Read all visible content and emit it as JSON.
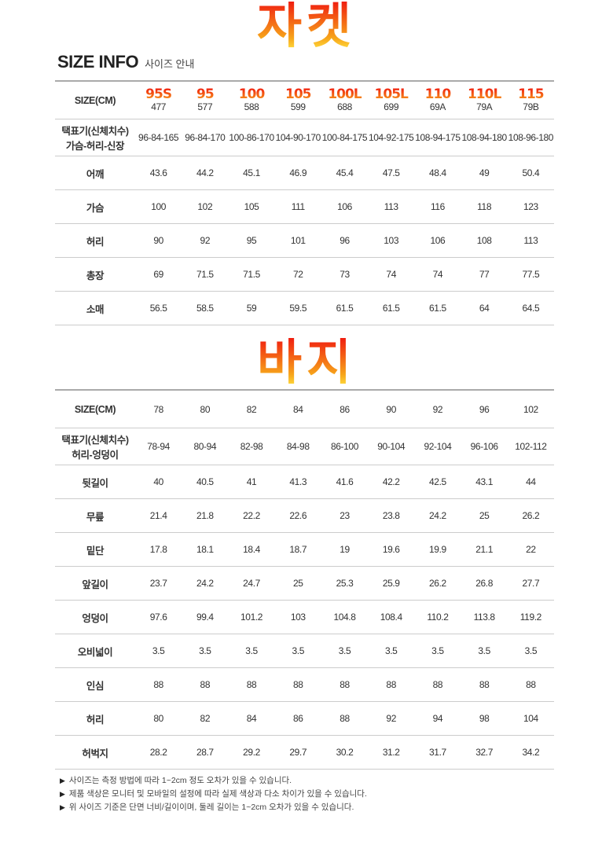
{
  "jacket": {
    "title": "자켓",
    "size_info": "SIZE INFO",
    "size_info_sub": "사이즈 안내",
    "size_label": "SIZE(CM)",
    "size_codes": [
      "95S",
      "95",
      "100",
      "105",
      "100L",
      "105L",
      "110",
      "110L",
      "115"
    ],
    "sizes": [
      "477",
      "577",
      "588",
      "599",
      "688",
      "699",
      "69A",
      "79A",
      "79B"
    ],
    "tag_label": [
      "택표기(신체치수)",
      "가슴-허리-신장"
    ],
    "tags": [
      "96-84-165",
      "96-84-170",
      "100-86-170",
      "104-90-170",
      "100-84-175",
      "104-92-175",
      "108-94-175",
      "108-94-180",
      "108-96-180"
    ],
    "rows": [
      {
        "label": "어깨",
        "values": [
          "43.6",
          "44.2",
          "45.1",
          "46.9",
          "45.4",
          "47.5",
          "48.4",
          "49",
          "50.4"
        ]
      },
      {
        "label": "가슴",
        "values": [
          "100",
          "102",
          "105",
          "111",
          "106",
          "113",
          "116",
          "118",
          "123"
        ]
      },
      {
        "label": "허리",
        "values": [
          "90",
          "92",
          "95",
          "101",
          "96",
          "103",
          "106",
          "108",
          "113"
        ]
      },
      {
        "label": "총장",
        "values": [
          "69",
          "71.5",
          "71.5",
          "72",
          "73",
          "74",
          "74",
          "77",
          "77.5"
        ]
      },
      {
        "label": "소매",
        "values": [
          "56.5",
          "58.5",
          "59",
          "59.5",
          "61.5",
          "61.5",
          "61.5",
          "64",
          "64.5"
        ]
      }
    ]
  },
  "pants": {
    "title": "바지",
    "size_label": "SIZE(CM)",
    "sizes": [
      "78",
      "80",
      "82",
      "84",
      "86",
      "90",
      "92",
      "96",
      "102"
    ],
    "tag_label": [
      "택표기(신체치수)",
      "허리-엉덩이"
    ],
    "tags": [
      "78-94",
      "80-94",
      "82-98",
      "84-98",
      "86-100",
      "90-104",
      "92-104",
      "96-106",
      "102-112"
    ],
    "rows": [
      {
        "label": "뒷길이",
        "values": [
          "40",
          "40.5",
          "41",
          "41.3",
          "41.6",
          "42.2",
          "42.5",
          "43.1",
          "44"
        ]
      },
      {
        "label": "무릎",
        "values": [
          "21.4",
          "21.8",
          "22.2",
          "22.6",
          "23",
          "23.8",
          "24.2",
          "25",
          "26.2"
        ]
      },
      {
        "label": "밑단",
        "values": [
          "17.8",
          "18.1",
          "18.4",
          "18.7",
          "19",
          "19.6",
          "19.9",
          "21.1",
          "22"
        ]
      },
      {
        "label": "앞길이",
        "values": [
          "23.7",
          "24.2",
          "24.7",
          "25",
          "25.3",
          "25.9",
          "26.2",
          "26.8",
          "27.7"
        ]
      },
      {
        "label": "엉덩이",
        "values": [
          "97.6",
          "99.4",
          "101.2",
          "103",
          "104.8",
          "108.4",
          "110.2",
          "113.8",
          "119.2"
        ]
      },
      {
        "label": "오비넓이",
        "values": [
          "3.5",
          "3.5",
          "3.5",
          "3.5",
          "3.5",
          "3.5",
          "3.5",
          "3.5",
          "3.5"
        ]
      },
      {
        "label": "인심",
        "values": [
          "88",
          "88",
          "88",
          "88",
          "88",
          "88",
          "88",
          "88",
          "88"
        ]
      },
      {
        "label": "허리",
        "values": [
          "80",
          "82",
          "84",
          "86",
          "88",
          "92",
          "94",
          "98",
          "104"
        ]
      },
      {
        "label": "허벅지",
        "values": [
          "28.2",
          "28.7",
          "29.2",
          "29.7",
          "30.2",
          "31.2",
          "31.7",
          "32.7",
          "34.2"
        ]
      }
    ]
  },
  "notes": [
    "사이즈는 측정 방법에 따라 1~2cm 정도 오차가 있을 수 있습니다.",
    "제품 색상은 모니터 및 모바일의 설정에 따라 실제 색상과 다소 차이가 있을 수 있습니다.",
    "위 사이즈 기준은 단면 너비/길이이며, 둘레 길이는 1~2cm 오차가 있을 수 있습니다."
  ]
}
